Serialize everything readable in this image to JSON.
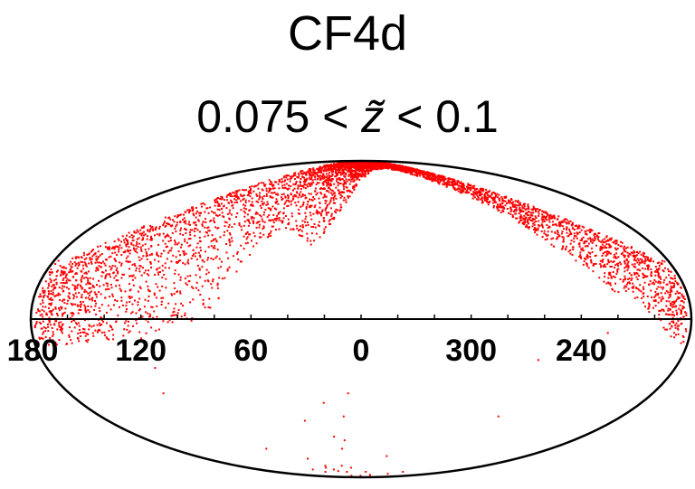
{
  "chart_data": {
    "type": "scatter",
    "projection": "aitoff-hammer (galactic sky map)",
    "title": "CF4d",
    "subtitle_prefix": "0.075 < ",
    "subtitle_symbol": "z̃",
    "subtitle_suffix": " < 0.1",
    "xticks": [
      "180",
      "120",
      "60",
      "0",
      "300",
      "240"
    ],
    "point_color": "#ff0000",
    "grid": false,
    "dense_band": {
      "description": "dense concentration of points in the northern hemisphere",
      "lower_edge": [
        [
          175,
          -10
        ],
        [
          150,
          -9
        ],
        [
          130,
          -8
        ],
        [
          110,
          -6
        ],
        [
          95,
          -2
        ],
        [
          80,
          5
        ],
        [
          70,
          16
        ],
        [
          60,
          30
        ],
        [
          50,
          35
        ],
        [
          40,
          32
        ],
        [
          30,
          27
        ],
        [
          20,
          35
        ],
        [
          10,
          50
        ],
        [
          0,
          62
        ],
        [
          -20,
          70
        ],
        [
          -40,
          72
        ],
        [
          -60,
          70
        ],
        [
          -80,
          60
        ],
        [
          -100,
          45
        ],
        [
          -120,
          25
        ],
        [
          -140,
          10
        ],
        [
          -150,
          8
        ],
        [
          -160,
          0
        ],
        [
          -175,
          -10
        ]
      ],
      "upper_edge": [
        [
          175,
          20
        ],
        [
          150,
          34
        ],
        [
          130,
          45
        ],
        [
          110,
          58
        ],
        [
          90,
          72
        ],
        [
          70,
          84
        ],
        [
          50,
          88
        ],
        [
          0,
          89
        ],
        [
          -50,
          88
        ],
        [
          -70,
          84
        ],
        [
          -90,
          75
        ],
        [
          -110,
          60
        ],
        [
          -130,
          48
        ],
        [
          -150,
          36
        ],
        [
          -175,
          22
        ]
      ]
    },
    "sparse_points": [
      [
        122,
        -28
      ],
      [
        118,
        -18
      ],
      [
        90,
        -55
      ],
      [
        85,
        -72
      ],
      [
        75,
        -75
      ],
      [
        70,
        -88
      ],
      [
        62,
        -62
      ],
      [
        56,
        -70
      ],
      [
        52,
        -68
      ],
      [
        48,
        -72
      ],
      [
        45,
        -74
      ],
      [
        40,
        -40
      ],
      [
        38,
        -82
      ],
      [
        30,
        -75
      ],
      [
        28,
        -68
      ],
      [
        24,
        -32
      ],
      [
        22,
        -48
      ],
      [
        18,
        -55
      ],
      [
        14,
        -50
      ],
      [
        12,
        -38
      ],
      [
        8,
        -28
      ],
      [
        4,
        -85
      ],
      [
        -28,
        -80
      ],
      [
        -40,
        -92
      ],
      [
        -55,
        -85
      ],
      [
        -70,
        -78
      ],
      [
        -95,
        -38
      ],
      [
        -100,
        -15
      ],
      [
        -135,
        -5
      ],
      [
        -88,
        -75
      ],
      [
        -28,
        -60
      ],
      [
        -10,
        -75
      ],
      [
        2,
        -82
      ],
      [
        16,
        -70
      ]
    ]
  }
}
